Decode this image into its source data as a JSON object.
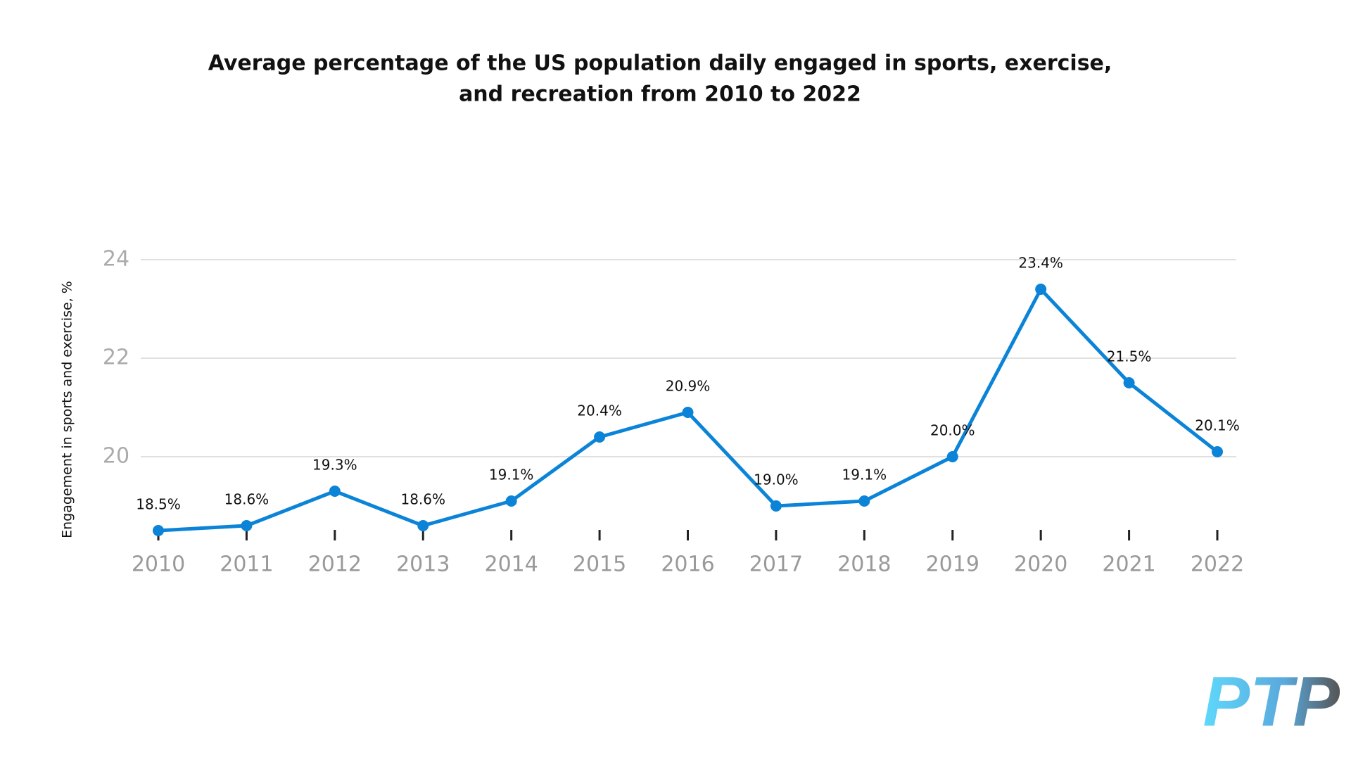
{
  "chart_data": {
    "type": "line",
    "title": [
      "Average percentage of the US population daily engaged in sports, exercise,",
      "and recreation from 2010 to 2022"
    ],
    "y_label": "Engagement in sports and exercise, %",
    "categories": [
      "2010",
      "2011",
      "2012",
      "2013",
      "2014",
      "2015",
      "2016",
      "2017",
      "2018",
      "2019",
      "2020",
      "2021",
      "2022"
    ],
    "series": [
      {
        "name": "Engagement",
        "color": "#0b84d8",
        "values": [
          18.5,
          18.6,
          19.3,
          18.6,
          19.1,
          20.4,
          20.9,
          19.0,
          19.1,
          20.0,
          23.4,
          21.5,
          20.1
        ],
        "value_labels": [
          "18.5%",
          "18.6%",
          "19.3%",
          "18.6%",
          "19.1%",
          "20.4%",
          "20.9%",
          "19.0%",
          "19.1%",
          "20.0%",
          "23.4%",
          "21.5%",
          "20.1%"
        ]
      }
    ],
    "ylim": [
      18.4,
      24
    ],
    "yticks": [
      20,
      22,
      24
    ],
    "grid": true,
    "logo": "PTP"
  }
}
